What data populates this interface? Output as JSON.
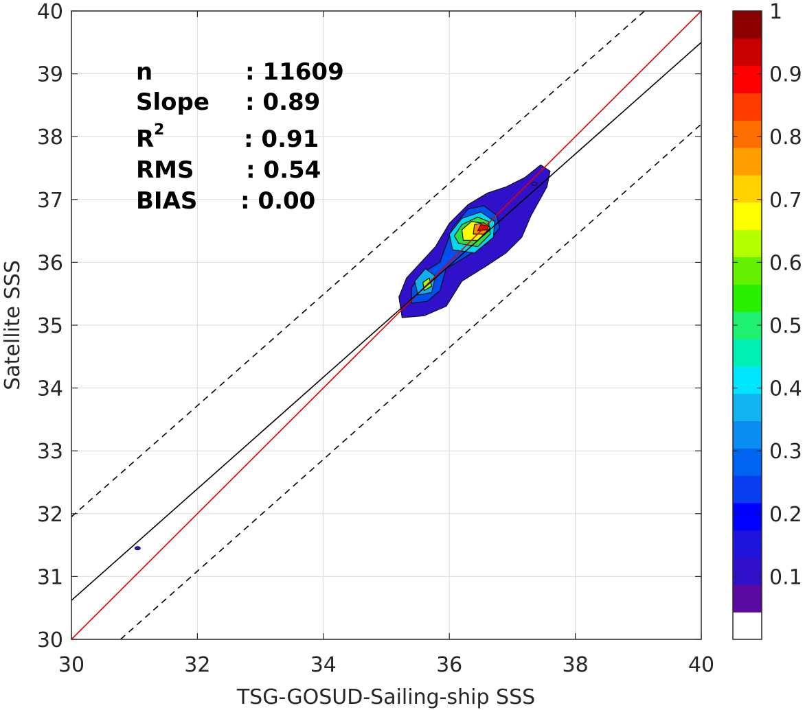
{
  "chart_data": {
    "type": "contour_scatter",
    "xlabel": "TSG-GOSUD-Sailing-ship SSS",
    "ylabel": "Satellite SSS",
    "xlim": [
      30,
      40
    ],
    "ylim": [
      30,
      40
    ],
    "x_ticks": [
      "30",
      "32",
      "34",
      "36",
      "38",
      "40"
    ],
    "y_ticks": [
      "30",
      "31",
      "32",
      "33",
      "34",
      "35",
      "36",
      "37",
      "38",
      "39",
      "40"
    ],
    "grid": true,
    "stats": {
      "n_label": "n",
      "n_value": ": 11609",
      "slope_label": "Slope",
      "slope_value": ": 0.89",
      "r2_label": "R",
      "r2_sup": "2",
      "r2_value": ": 0.91",
      "rms_label": "RMS",
      "rms_value": ": 0.54",
      "bias_label": "BIAS",
      "bias_value": ": 0.00"
    },
    "lines": [
      {
        "name": "identity",
        "x": [
          30,
          40
        ],
        "y": [
          30,
          40
        ],
        "color": "#e00000",
        "style": "solid"
      },
      {
        "name": "fit",
        "x": [
          30,
          40
        ],
        "y": [
          30.62,
          39.5
        ],
        "color": "#000000",
        "style": "solid"
      },
      {
        "name": "upper-bound",
        "x": [
          30,
          39.1
        ],
        "y": [
          31.95,
          40
        ],
        "color": "#000000",
        "style": "dashed"
      },
      {
        "name": "lower-bound",
        "x": [
          30.78,
          40
        ],
        "y": [
          30,
          38.2
        ],
        "color": "#000000",
        "style": "dashed"
      }
    ],
    "density_contours": [
      {
        "level": 0.05,
        "color": "#3010c8",
        "points": [
          [
            35.25,
            35.12
          ],
          [
            35.6,
            35.15
          ],
          [
            35.95,
            35.3
          ],
          [
            36.2,
            35.7
          ],
          [
            36.6,
            35.95
          ],
          [
            36.9,
            36.15
          ],
          [
            37.15,
            36.4
          ],
          [
            37.3,
            36.75
          ],
          [
            37.55,
            37.2
          ],
          [
            37.6,
            37.45
          ],
          [
            37.45,
            37.55
          ],
          [
            37.2,
            37.35
          ],
          [
            36.9,
            37.2
          ],
          [
            36.6,
            37.1
          ],
          [
            36.3,
            36.92
          ],
          [
            36.0,
            36.62
          ],
          [
            35.78,
            36.25
          ],
          [
            35.55,
            36.0
          ],
          [
            35.32,
            35.75
          ],
          [
            35.2,
            35.45
          ]
        ]
      },
      {
        "level": 0.2,
        "color": "#0050f0",
        "points": [
          [
            35.4,
            35.35
          ],
          [
            35.65,
            35.38
          ],
          [
            35.85,
            35.55
          ],
          [
            35.95,
            35.9
          ],
          [
            36.2,
            36.05
          ],
          [
            36.6,
            36.3
          ],
          [
            36.8,
            36.55
          ],
          [
            36.75,
            36.75
          ],
          [
            36.55,
            36.9
          ],
          [
            36.3,
            36.85
          ],
          [
            36.05,
            36.55
          ],
          [
            35.85,
            36.0
          ],
          [
            35.6,
            35.85
          ],
          [
            35.4,
            35.6
          ]
        ]
      },
      {
        "level": 0.3,
        "color": "#10b0f0",
        "points": [
          [
            35.5,
            35.48
          ],
          [
            35.72,
            35.52
          ],
          [
            35.78,
            35.78
          ],
          [
            35.62,
            35.9
          ],
          [
            35.45,
            35.7
          ]
        ]
      },
      {
        "level": 0.35,
        "color": "#00d8f0",
        "points": [
          [
            36.05,
            36.2
          ],
          [
            36.4,
            36.15
          ],
          [
            36.7,
            36.4
          ],
          [
            36.72,
            36.65
          ],
          [
            36.5,
            36.8
          ],
          [
            36.2,
            36.7
          ],
          [
            36.0,
            36.45
          ]
        ]
      },
      {
        "level": 0.6,
        "color": "#a0ff00",
        "points": [
          [
            35.6,
            35.55
          ],
          [
            35.72,
            35.62
          ],
          [
            35.68,
            35.75
          ],
          [
            35.58,
            35.68
          ]
        ]
      },
      {
        "level": 0.5,
        "color": "#30e040",
        "points": [
          [
            36.15,
            36.3
          ],
          [
            36.45,
            36.25
          ],
          [
            36.65,
            36.45
          ],
          [
            36.62,
            36.65
          ],
          [
            36.45,
            36.72
          ],
          [
            36.2,
            36.6
          ],
          [
            36.08,
            36.42
          ]
        ]
      },
      {
        "level": 0.65,
        "color": "#ffff00",
        "points": [
          [
            36.22,
            36.35
          ],
          [
            36.45,
            36.35
          ],
          [
            36.6,
            36.5
          ],
          [
            36.55,
            36.62
          ],
          [
            36.35,
            36.65
          ],
          [
            36.2,
            36.52
          ]
        ]
      },
      {
        "level": 0.75,
        "color": "#ff8800",
        "points": [
          [
            36.38,
            36.45
          ],
          [
            36.55,
            36.45
          ],
          [
            36.65,
            36.55
          ],
          [
            36.55,
            36.63
          ],
          [
            36.4,
            36.6
          ]
        ]
      },
      {
        "level": 0.9,
        "color": "#e01010",
        "points": [
          [
            36.45,
            36.5
          ],
          [
            36.6,
            36.52
          ],
          [
            36.62,
            36.58
          ],
          [
            36.5,
            36.6
          ]
        ]
      }
    ],
    "outliers": [
      [
        31.05,
        31.45
      ],
      [
        37.35,
        37.25
      ]
    ],
    "colorbar": {
      "ticks": [
        "0.1",
        "0.2",
        "0.3",
        "0.4",
        "0.5",
        "0.6",
        "0.7",
        "0.8",
        "0.9",
        "1"
      ],
      "colors": [
        "#ffffff",
        "#5a0aa0",
        "#3010c8",
        "#1e14dc",
        "#0000ff",
        "#0a3cf0",
        "#0064f0",
        "#0a8cf0",
        "#14b4f0",
        "#00e6ff",
        "#00f0b4",
        "#1ef070",
        "#28f000",
        "#64f000",
        "#b4ff00",
        "#ffff00",
        "#ffd200",
        "#ffa000",
        "#ff6e00",
        "#ff3c00",
        "#ff0000",
        "#c80000",
        "#8c0000"
      ]
    }
  }
}
